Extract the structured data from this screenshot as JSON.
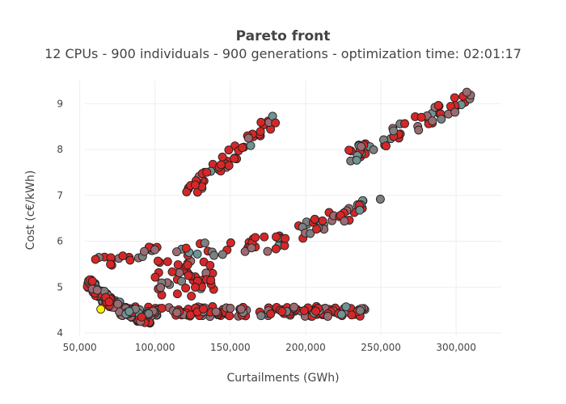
{
  "chart_data": {
    "type": "scatter",
    "title": "Pareto front",
    "subtitle": "12 CPUs - 900 individuals - 900 generations - optimization time: 02:01:17",
    "xlabel": "Curtailments (GWh)",
    "ylabel": "Cost (c€/kWh)",
    "xlim": [
      40000,
      330000
    ],
    "ylim": [
      3.95,
      9.5
    ],
    "xticks": [
      50000,
      100000,
      150000,
      200000,
      250000,
      300000
    ],
    "xtick_labels": [
      "50,000",
      "100,000",
      "150,000",
      "200,000",
      "250,000",
      "300,000"
    ],
    "yticks": [
      4,
      5,
      6,
      7,
      8,
      9
    ],
    "ytick_labels": [
      "4",
      "5",
      "6",
      "7",
      "8",
      "9"
    ],
    "grid": true,
    "legend": "none",
    "colors": {
      "red": "#d62728",
      "rose": "#9c6b72",
      "gray": "#7f7f7f",
      "teal": "#6e9494",
      "highlight": "#ffee00"
    },
    "clusters": [
      {
        "region": "bottom-band",
        "x": [
          82000,
          240000
        ],
        "y": [
          4.36,
          4.58
        ],
        "n": 170,
        "mix": [
          0.55,
          0.25,
          0.12,
          0.08
        ]
      },
      {
        "region": "left-curve",
        "x": [
          55000,
          100000
        ],
        "y": [
          4.35,
          5.15
        ],
        "n": 140,
        "mix": [
          0.45,
          0.3,
          0.15,
          0.1
        ]
      },
      {
        "region": "lower-middle",
        "x": [
          100000,
          140000
        ],
        "y": [
          4.8,
          5.6
        ],
        "n": 45,
        "mix": [
          0.7,
          0.15,
          0.1,
          0.05
        ]
      },
      {
        "region": "mid-rise",
        "x": [
          60000,
          190000
        ],
        "y": [
          5.6,
          6.0
        ],
        "n": 50,
        "mix": [
          0.6,
          0.25,
          0.1,
          0.05
        ]
      },
      {
        "region": "upper-diagonal",
        "x": [
          120000,
          180000
        ],
        "y": [
          7.0,
          8.7
        ],
        "n": 55,
        "mix": [
          0.8,
          0.1,
          0.05,
          0.05
        ]
      },
      {
        "region": "right-diagonal",
        "x": [
          180000,
          250000
        ],
        "y": [
          6.0,
          6.9
        ],
        "n": 40,
        "mix": [
          0.5,
          0.2,
          0.2,
          0.1
        ]
      },
      {
        "region": "upper-right",
        "x": [
          225000,
          310000
        ],
        "y": [
          7.8,
          9.15
        ],
        "n": 60,
        "mix": [
          0.45,
          0.25,
          0.15,
          0.15
        ]
      }
    ],
    "highlight_point": {
      "x": 64000,
      "y": 4.52,
      "color": "#ffee00"
    }
  }
}
